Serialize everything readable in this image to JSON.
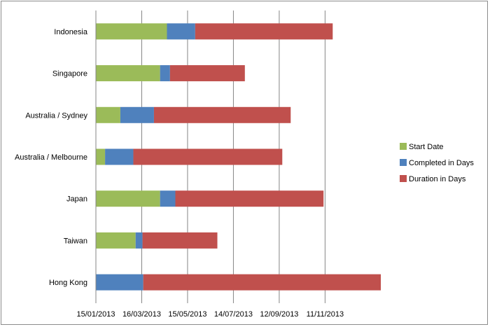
{
  "chart_data": {
    "type": "bar",
    "orientation": "horizontal",
    "stacked": true,
    "categories": [
      "Indonesia",
      "Singapore",
      "Australia / Sydney",
      "Australia / Melbourne",
      "Japan",
      "Taiwan",
      "Hong Kong"
    ],
    "series": [
      {
        "name": "Start Date",
        "color": "#9bbb59",
        "values": [
          "2013-04-18",
          "2013-04-09",
          "2013-02-16",
          "2013-01-27",
          "2013-04-09",
          "2013-03-08",
          "2013-01-15"
        ]
      },
      {
        "name": "Completed in Days",
        "color": "#4f81bd",
        "values": [
          37,
          13,
          44,
          37,
          20,
          9,
          62
        ]
      },
      {
        "name": "Duration in Days",
        "color": "#c0504d",
        "values": [
          180,
          98,
          179,
          195,
          194,
          98,
          311
        ]
      }
    ],
    "x_ticks": [
      "15/01/2013",
      "16/03/2013",
      "15/05/2013",
      "14/07/2013",
      "12/09/2013",
      "11/11/2013"
    ],
    "x_range": [
      "2013-01-15",
      "2014-01-29"
    ],
    "grid": "vertical",
    "legend_position": "right"
  }
}
